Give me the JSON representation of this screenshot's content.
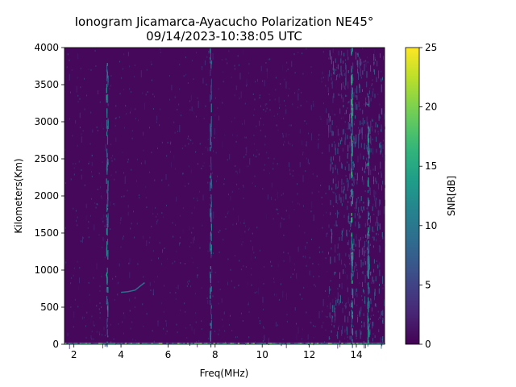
{
  "chart_data": {
    "type": "heatmap",
    "title_line1": "Ionogram Jicamarca-Ayacucho Polarization NE45°",
    "title_line2": "09/14/2023-10:38:05 UTC",
    "xlabel": "Freq(MHz)",
    "ylabel": "Kilometers(Km)",
    "colorbar_label": "SNR[dB]",
    "colormap": "viridis",
    "xlim": [
      1.6,
      15.2
    ],
    "ylim": [
      0,
      4000
    ],
    "clim": [
      0,
      25
    ],
    "x_ticks": [
      2,
      4,
      6,
      8,
      10,
      12,
      14
    ],
    "y_ticks": [
      0,
      500,
      1000,
      1500,
      2000,
      2500,
      3000,
      3500,
      4000
    ],
    "colorbar_ticks": [
      0,
      5,
      10,
      15,
      20,
      25
    ],
    "grid": false,
    "features": [
      {
        "name": "noise-floor",
        "snr_db": 1
      },
      {
        "name": "interference-band",
        "x_range": [
          12.8,
          15.2
        ],
        "y_range": [
          0,
          4000
        ],
        "snr_db": [
          3,
          10
        ]
      },
      {
        "name": "interference-line",
        "x": 13.8,
        "y_range": [
          0,
          4000
        ],
        "snr_db": [
          5,
          18
        ]
      },
      {
        "name": "interference-line",
        "x": 14.5,
        "y_range": [
          0,
          3400
        ],
        "snr_db": [
          5,
          15
        ]
      },
      {
        "name": "interference-line",
        "x": 3.4,
        "y_range": [
          0,
          4000
        ],
        "snr_db": [
          3,
          14
        ]
      },
      {
        "name": "interference-line",
        "x": 7.8,
        "y_range": [
          0,
          4000
        ],
        "snr_db": [
          3,
          12
        ]
      },
      {
        "name": "echo-trace",
        "x": [
          4.0,
          4.3,
          4.6,
          4.8,
          5.0
        ],
        "y": [
          700,
          710,
          730,
          780,
          830
        ],
        "snr_db": 9
      },
      {
        "name": "ground-line",
        "x_range": [
          1.6,
          15.2
        ],
        "y": 0,
        "snr_db": 20
      }
    ]
  }
}
